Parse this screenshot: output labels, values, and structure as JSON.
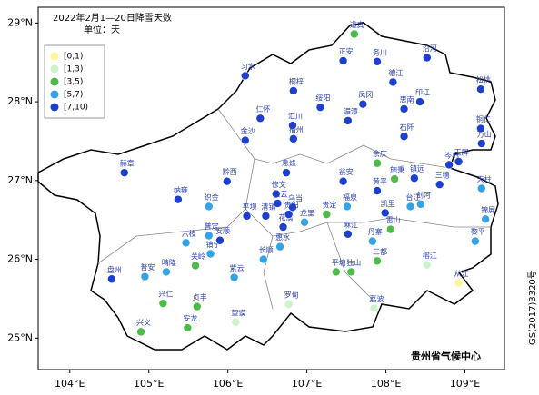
{
  "chart_data": {
    "type": "scatter",
    "title": "2022年2月1—20日降雪天数",
    "subtitle": "单位：天",
    "credit": "贵州省气候中心",
    "map_code": "GS(2017)3320号",
    "xlim": [
      103.6,
      109.5
    ],
    "ylim": [
      24.6,
      29.2
    ],
    "xticks": [
      {
        "value": 104,
        "label": "104°E"
      },
      {
        "value": 105,
        "label": "105°E"
      },
      {
        "value": 106,
        "label": "106°E"
      },
      {
        "value": 107,
        "label": "107°E"
      },
      {
        "value": 108,
        "label": "108°E"
      },
      {
        "value": 109,
        "label": "109°E"
      }
    ],
    "yticks": [
      {
        "value": 25,
        "label": "25°N"
      },
      {
        "value": 26,
        "label": "26°N"
      },
      {
        "value": 27,
        "label": "27°N"
      },
      {
        "value": 28,
        "label": "28°N"
      },
      {
        "value": 29,
        "label": "29°N"
      }
    ],
    "legend": "upper left",
    "series": [
      {
        "name": "[0,1)",
        "color": "#fff59a",
        "x": [
          108.92
        ],
        "y": [
          25.7
        ],
        "labels": [
          "从江"
        ]
      },
      {
        "name": "[1,3)",
        "color": "#ccf3cc",
        "x": [
          106.1,
          106.77,
          107.85,
          108.52
        ],
        "y": [
          25.2,
          25.43,
          25.38,
          25.93
        ],
        "labels": [
          "望谟",
          "罗甸",
          "荔波",
          "榕江"
        ]
      },
      {
        "name": "[3,5)",
        "color": "#4cbb47",
        "x": [
          107.6,
          107.89,
          108.11,
          107.25,
          108.06,
          105.59,
          105.18,
          105.61,
          104.9,
          105.49,
          107.37,
          107.56,
          107.89
        ],
        "y": [
          28.86,
          27.22,
          27.02,
          26.57,
          26.38,
          25.92,
          25.44,
          25.4,
          25.08,
          25.13,
          25.84,
          25.84,
          25.98
        ],
        "labels": [
          "道真",
          "余庆",
          "施秉",
          "贵定",
          "雷山",
          "关岭",
          "兴仁",
          "贞丰",
          "兴义",
          "安龙",
          "平塘",
          "独山",
          "三都"
        ]
      },
      {
        "name": "[5,7)",
        "color": "#33a3e3",
        "x": [
          109.21,
          105.76,
          106.97,
          107.51,
          108.31,
          108.44,
          109.26,
          109.13,
          107.83,
          105.76,
          105.47,
          106.45,
          106.66,
          105.78,
          106.08,
          104.95,
          105.22
        ],
        "y": [
          26.9,
          26.67,
          26.47,
          26.67,
          26.67,
          26.7,
          26.51,
          26.23,
          26.23,
          26.3,
          26.21,
          26.0,
          26.16,
          26.07,
          25.77,
          25.78,
          25.84
        ],
        "labels": [
          "天柱",
          "织金",
          "龙里",
          "福泉",
          "台江",
          "剑河",
          "锦屏",
          "黎平",
          "丹寨",
          "普定",
          "六枝",
          "长顺",
          "惠水",
          "镇宁",
          "紫云",
          "普安",
          "晴隆"
        ]
      },
      {
        "name": "[7,10)",
        "color": "#1c3fd0",
        "x": [
          107.46,
          107.89,
          108.09,
          108.52,
          106.22,
          106.83,
          109.2,
          106.41,
          106.22,
          107.17,
          106.82,
          106.83,
          107.52,
          107.71,
          108.23,
          108.43,
          108.23,
          109.2,
          109.21,
          104.69,
          105.99,
          106.74,
          105.37,
          106.61,
          107.46,
          108.36,
          108.68,
          108.8,
          108.92,
          107.89,
          106.48,
          106.63,
          106.82,
          106.7,
          106.77,
          107.99,
          107.52,
          105.9,
          106.24,
          104.53
        ],
        "y": [
          28.52,
          28.51,
          28.25,
          28.56,
          28.33,
          28.14,
          28.16,
          27.79,
          27.51,
          27.93,
          27.7,
          27.53,
          27.76,
          27.97,
          27.91,
          28.0,
          27.56,
          27.66,
          27.47,
          27.1,
          26.99,
          27.1,
          26.76,
          26.83,
          26.99,
          27.03,
          26.95,
          27.2,
          27.24,
          26.87,
          26.55,
          26.71,
          26.66,
          26.41,
          26.57,
          26.59,
          26.32,
          26.24,
          26.55,
          25.75
        ],
        "labels": [
          "正安",
          "务川",
          "德江",
          "沿河",
          "习水",
          "桐梓",
          "松桃",
          "仁怀",
          "金沙",
          "绥阳",
          "汇川",
          "播州",
          "湄潭",
          "凤冈",
          "思南",
          "印江",
          "石阡",
          "铜仁",
          "万山",
          "赫章",
          "黔西",
          "息烽",
          "纳雍",
          "修文",
          "瓮安",
          "镇远",
          "三穗",
          "岑巩",
          "玉屏",
          "黄平",
          "清镇",
          "白云",
          "乌当",
          "花溪",
          "贵阳",
          "凯里",
          "麻江",
          "安顺",
          "平坝",
          "盘州"
        ]
      }
    ]
  }
}
